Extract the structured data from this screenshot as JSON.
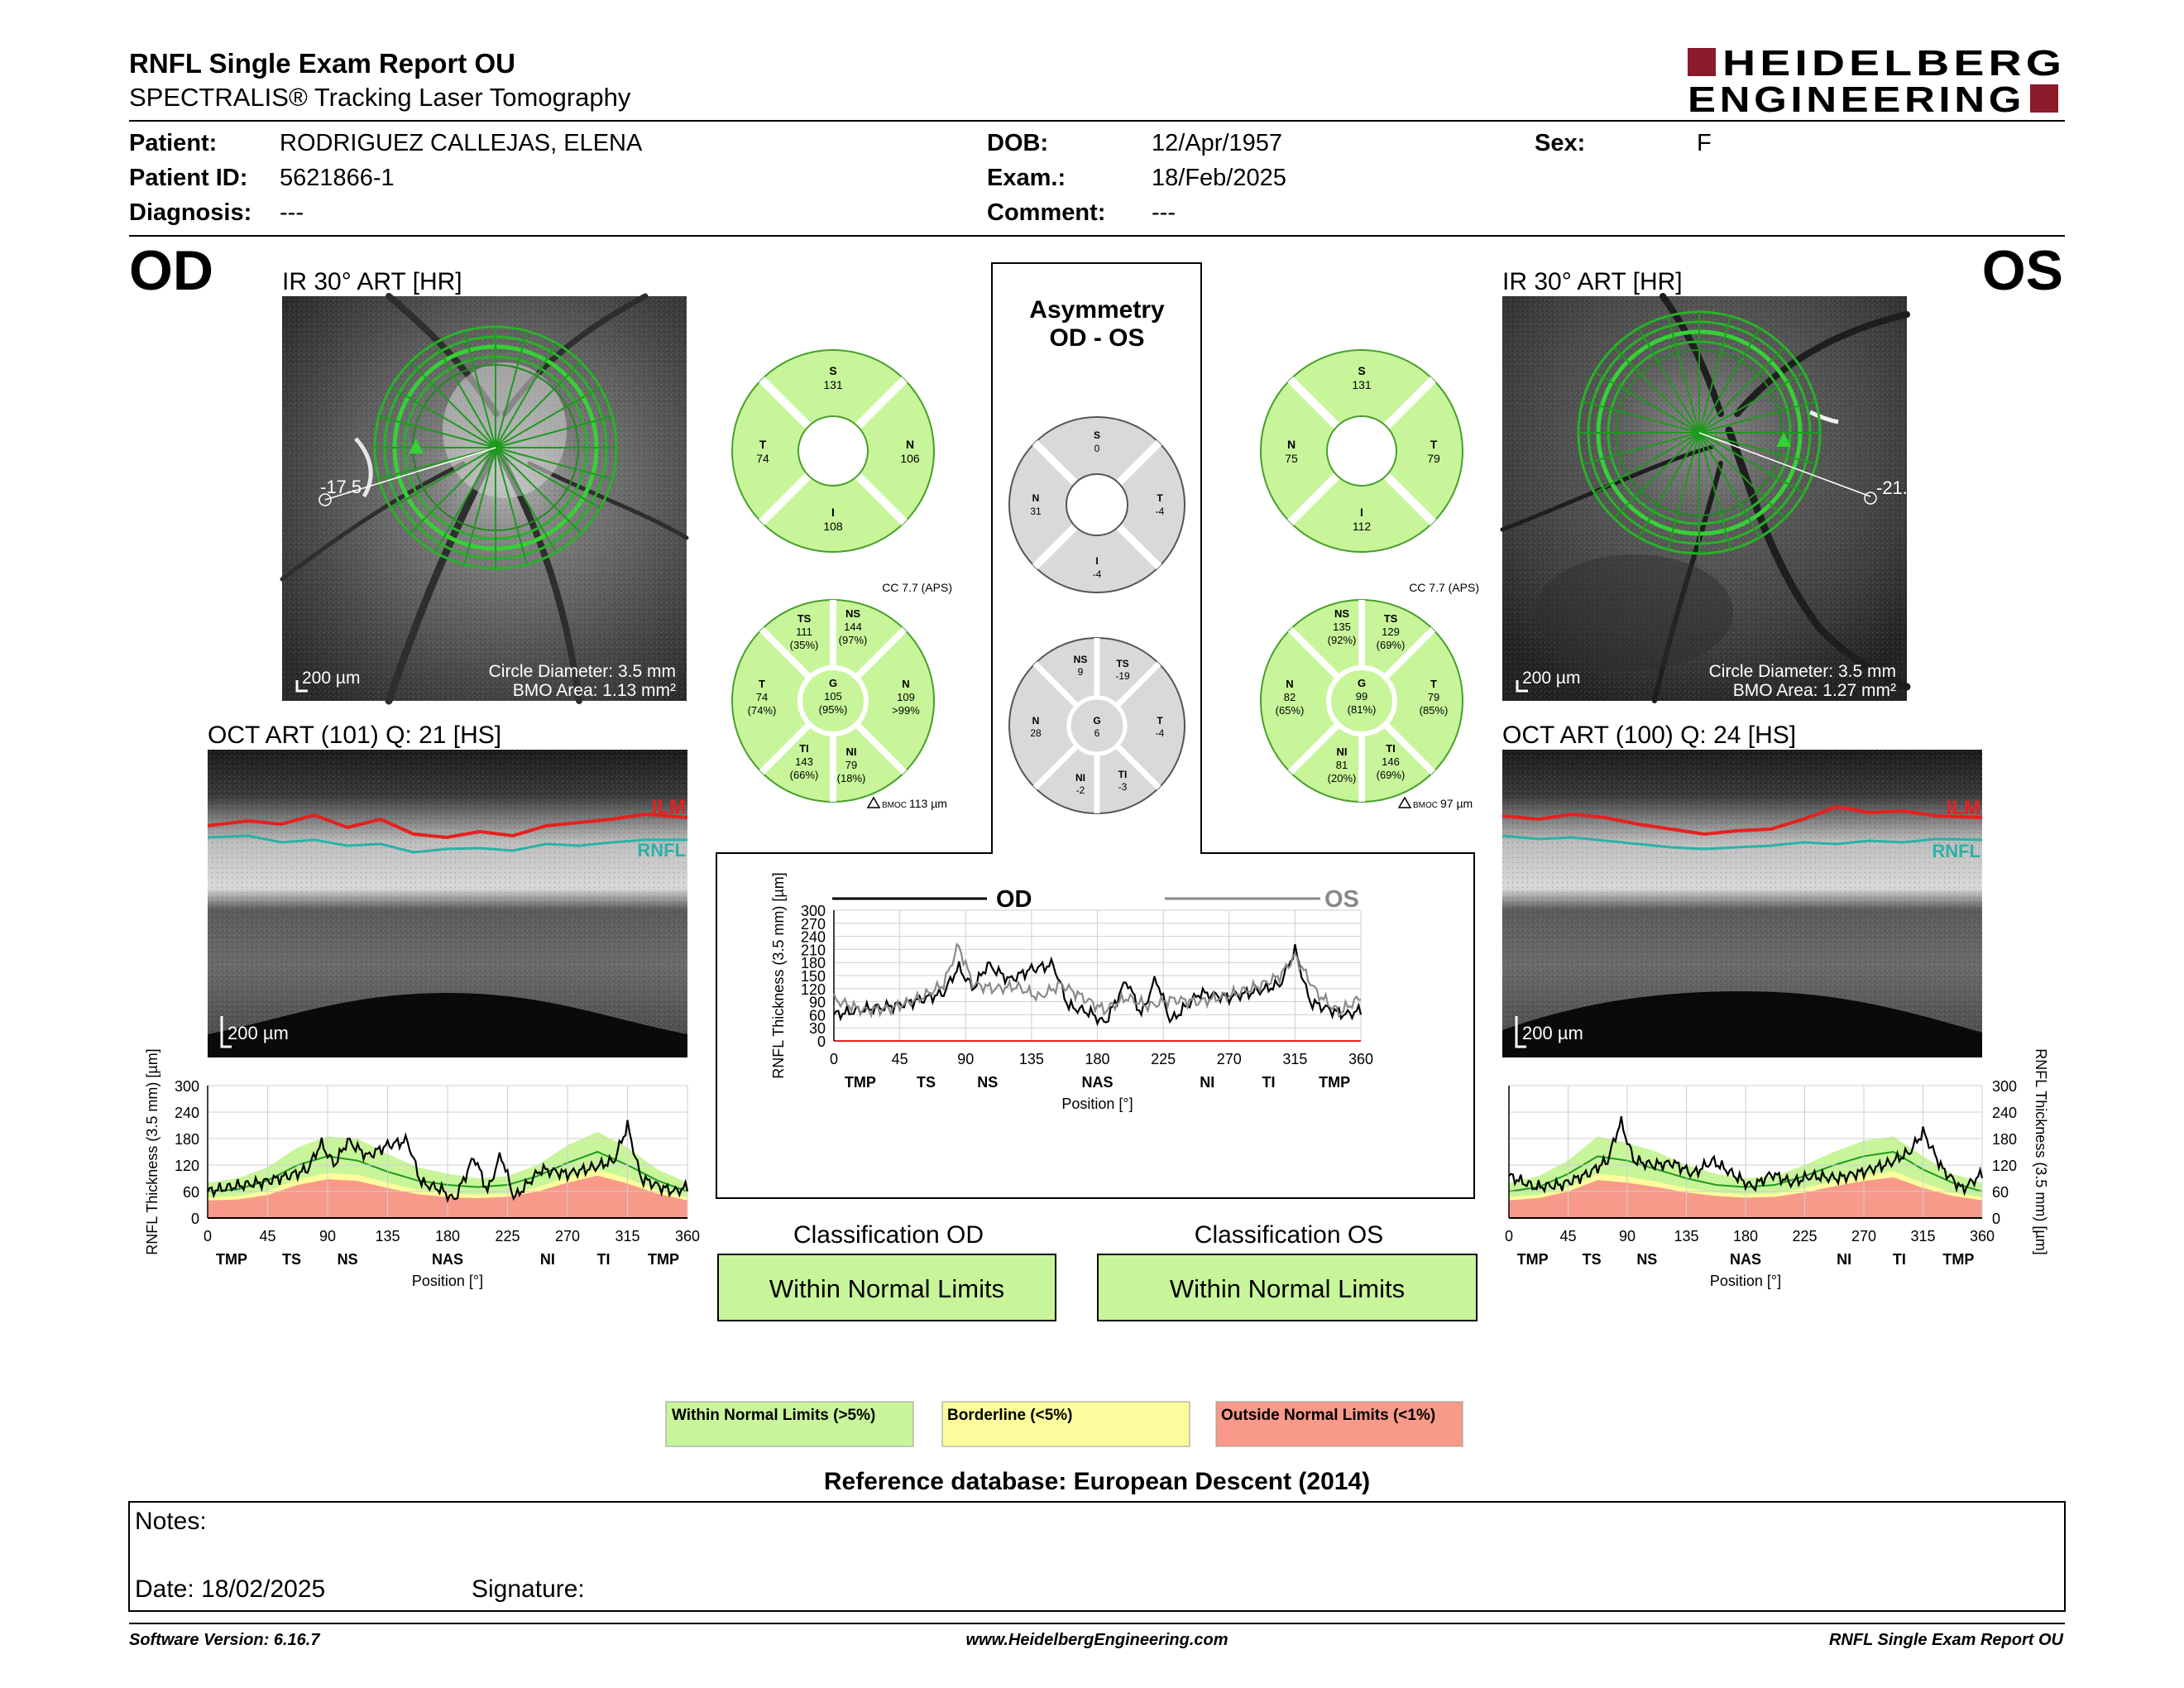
{
  "header": {
    "title": "RNFL Single Exam Report OU",
    "subtitle": "SPECTRALIS® Tracking Laser Tomography",
    "logo_line1": "HEIDELBERG",
    "logo_line2": "ENGINEERING",
    "logo_color": "#8b1a2b"
  },
  "patient": {
    "patient_label": "Patient:",
    "patient_value": "RODRIGUEZ CALLEJAS, ELENA",
    "id_label": "Patient ID:",
    "id_value": "5621866-1",
    "diagnosis_label": "Diagnosis:",
    "diagnosis_value": "---",
    "dob_label": "DOB:",
    "dob_value": "12/Apr/1957",
    "exam_label": "Exam.:",
    "exam_value": "18/Feb/2025",
    "comment_label": "Comment:",
    "comment_value": "---",
    "sex_label": "Sex:",
    "sex_value": "F"
  },
  "od": {
    "eye": "OD",
    "ir_title": "IR 30° ART [HR]",
    "angle": "-17.5",
    "scale": "200 µm",
    "circle_diameter": "Circle Diameter: 3.5 mm",
    "bmo_area": "BMO Area: 1.13 mm²",
    "oct_title": "OCT ART (101) Q: 21 [HS]",
    "oct_scale": "200 µm",
    "ilm": "ILM",
    "rnfl": "RNFL",
    "quad": {
      "S": "131",
      "N": "106",
      "I": "108",
      "T": "74"
    },
    "sector_header": "CC 7.7 (APS)",
    "bmoc": "113 µm",
    "sectors": {
      "TS": {
        "v": "111",
        "p": "(35%)"
      },
      "NS": {
        "v": "144",
        "p": "(97%)"
      },
      "N": {
        "v": "109",
        "p": ">99%"
      },
      "NI": {
        "v": "79",
        "p": "(18%)"
      },
      "TI": {
        "v": "143",
        "p": "(66%)"
      },
      "T": {
        "v": "74",
        "p": "(74%)"
      },
      "G": {
        "v": "105",
        "p": "(95%)"
      }
    },
    "classification_label": "Classification OD",
    "classification_value": "Within Normal Limits"
  },
  "os": {
    "eye": "OS",
    "ir_title": "IR 30° ART [HR]",
    "angle": "-21.",
    "scale": "200 µm",
    "circle_diameter": "Circle Diameter: 3.5 mm",
    "bmo_area": "BMO Area: 1.27 mm²",
    "oct_title": "OCT ART (100) Q: 24 [HS]",
    "oct_scale": "200 µm",
    "ilm": "ILM",
    "rnfl": "RNFL",
    "quad": {
      "S": "131",
      "N": "75",
      "I": "112",
      "T": "79"
    },
    "sector_header": "CC 7.7 (APS)",
    "bmoc": "97 µm",
    "sectors": {
      "NS": {
        "v": "135",
        "p": "(92%)"
      },
      "TS": {
        "v": "129",
        "p": "(69%)"
      },
      "T": {
        "v": "79",
        "p": "(85%)"
      },
      "TI": {
        "v": "146",
        "p": "(69%)"
      },
      "NI": {
        "v": "81",
        "p": "(20%)"
      },
      "N": {
        "v": "82",
        "p": "(65%)"
      },
      "G": {
        "v": "99",
        "p": "(81%)"
      }
    },
    "classification_label": "Classification OS",
    "classification_value": "Within Normal Limits"
  },
  "asymmetry": {
    "title1": "Asymmetry",
    "title2": "OD - OS",
    "quad": {
      "S": "0",
      "N": "31",
      "T": "-4",
      "I": "-4"
    },
    "sectors": {
      "NS": "9",
      "TS": "-19",
      "N": "28",
      "G": "6",
      "T": "-4",
      "NI": "-2",
      "TI": "-3"
    }
  },
  "legend": {
    "wnl": "Within Normal Limits (>5%)",
    "borderline": "Borderline (<5%)",
    "onl": "Outside Normal Limits (<1%)",
    "reference": "Reference database: European Descent (2014)"
  },
  "notes": {
    "notes_label": "Notes:",
    "date": "Date: 18/02/2025",
    "signature": "Signature:"
  },
  "footer": {
    "software": "Software Version: 6.16.7",
    "url": "www.HeidelbergEngineering.com",
    "report": "RNFL Single Exam Report OU"
  },
  "colors": {
    "wnl": "#c8f59a",
    "wnl_border": "#46a02a",
    "borderline": "#fdfc9c",
    "onl": "#f89a8a",
    "asym_gray": "#d9d9d9",
    "ilm": "#e62020",
    "rnfl": "#2ab2a8"
  },
  "chart_data": [
    {
      "id": "od-profile",
      "type": "area",
      "ylabel": "RNFL Thickness (3.5 mm) [µm]",
      "xlabel": "Position [°]",
      "x_ticks": [
        0,
        45,
        90,
        135,
        180,
        225,
        270,
        315,
        360
      ],
      "y_ticks": [
        0,
        60,
        120,
        180,
        240,
        300
      ],
      "sector_labels": [
        "TMP",
        "TS",
        "NS",
        "NAS",
        "NI",
        "TI",
        "TMP"
      ],
      "sector_positions": [
        18,
        63,
        105,
        180,
        255,
        297,
        342
      ],
      "xlim": [
        0,
        360
      ],
      "ylim": [
        0,
        300
      ],
      "normal_upper": [
        80,
        90,
        115,
        160,
        185,
        180,
        145,
        115,
        100,
        90,
        95,
        120,
        165,
        195,
        160,
        110,
        80
      ],
      "normal_mean": [
        60,
        65,
        85,
        120,
        140,
        130,
        105,
        85,
        75,
        70,
        75,
        95,
        125,
        150,
        120,
        85,
        60
      ],
      "borderline_upper": [
        47,
        50,
        62,
        88,
        102,
        98,
        80,
        64,
        56,
        53,
        56,
        70,
        92,
        110,
        90,
        64,
        47
      ],
      "outside_upper": [
        40,
        42,
        52,
        75,
        88,
        84,
        68,
        54,
        47,
        45,
        48,
        60,
        80,
        96,
        78,
        55,
        40
      ],
      "series": [
        {
          "name": "OD",
          "x": [
            0,
            20,
            40,
            60,
            75,
            85,
            95,
            105,
            120,
            135,
            150,
            160,
            175,
            185,
            200,
            210,
            220,
            230,
            250,
            270,
            290,
            305,
            315,
            325,
            340,
            350,
            360
          ],
          "values": [
            60,
            72,
            80,
            95,
            110,
            170,
            120,
            175,
            140,
            165,
            175,
            80,
            65,
            40,
            140,
            60,
            145,
            45,
            110,
            100,
            115,
            130,
            210,
            90,
            70,
            60,
            70
          ]
        }
      ]
    },
    {
      "id": "asym-profile",
      "type": "line",
      "ylabel": "RNFL Thickness (3.5 mm) [µm]",
      "xlabel": "Position [°]",
      "x_ticks": [
        0,
        45,
        90,
        135,
        180,
        225,
        270,
        315,
        360
      ],
      "y_ticks": [
        0,
        30,
        60,
        90,
        120,
        150,
        180,
        210,
        240,
        270,
        300
      ],
      "sector_labels": [
        "TMP",
        "TS",
        "NS",
        "NAS",
        "NI",
        "TI",
        "TMP"
      ],
      "sector_positions": [
        18,
        63,
        105,
        180,
        255,
        297,
        342
      ],
      "xlim": [
        0,
        360
      ],
      "ylim": [
        0,
        300
      ],
      "series": [
        {
          "name": "OD",
          "x": [
            0,
            20,
            40,
            60,
            75,
            85,
            95,
            105,
            120,
            135,
            150,
            160,
            175,
            185,
            200,
            210,
            220,
            230,
            250,
            270,
            290,
            305,
            315,
            325,
            340,
            350,
            360
          ],
          "values": [
            60,
            72,
            80,
            95,
            110,
            170,
            120,
            175,
            140,
            165,
            175,
            80,
            65,
            40,
            140,
            60,
            145,
            45,
            110,
            100,
            115,
            130,
            210,
            90,
            70,
            60,
            70
          ]
        },
        {
          "name": "OS",
          "x": [
            0,
            20,
            40,
            60,
            75,
            85,
            95,
            110,
            125,
            140,
            155,
            170,
            185,
            200,
            215,
            230,
            250,
            270,
            290,
            305,
            315,
            330,
            345,
            360
          ],
          "values": [
            95,
            70,
            75,
            100,
            130,
            220,
            130,
            120,
            125,
            100,
            130,
            100,
            70,
            100,
            80,
            95,
            90,
            105,
            125,
            150,
            195,
            110,
            65,
            100
          ]
        }
      ]
    },
    {
      "id": "os-profile",
      "type": "area",
      "ylabel": "RNFL Thickness (3.5 mm) [µm]",
      "xlabel": "Position [°]",
      "x_ticks": [
        0,
        45,
        90,
        135,
        180,
        225,
        270,
        315,
        360
      ],
      "y_ticks": [
        0,
        60,
        120,
        180,
        240,
        300
      ],
      "sector_labels": [
        "TMP",
        "TS",
        "NS",
        "NAS",
        "NI",
        "TI",
        "TMP"
      ],
      "sector_positions": [
        18,
        63,
        105,
        180,
        255,
        297,
        342
      ],
      "xlim": [
        0,
        360
      ],
      "ylim": [
        0,
        300
      ],
      "normal_upper": [
        80,
        95,
        130,
        185,
        170,
        150,
        120,
        100,
        90,
        95,
        120,
        150,
        175,
        185,
        140,
        100,
        80
      ],
      "normal_mean": [
        60,
        70,
        100,
        140,
        130,
        110,
        90,
        75,
        70,
        75,
        95,
        120,
        140,
        150,
        110,
        80,
        60
      ],
      "borderline_upper": [
        47,
        53,
        70,
        100,
        94,
        82,
        68,
        58,
        54,
        56,
        68,
        84,
        98,
        106,
        80,
        58,
        47
      ],
      "outside_upper": [
        40,
        45,
        60,
        86,
        80,
        70,
        58,
        50,
        46,
        48,
        58,
        72,
        84,
        92,
        68,
        50,
        40
      ],
      "series": [
        {
          "name": "OS",
          "x": [
            0,
            20,
            40,
            60,
            75,
            85,
            95,
            110,
            125,
            140,
            155,
            170,
            185,
            200,
            215,
            230,
            250,
            270,
            290,
            305,
            315,
            330,
            345,
            360
          ],
          "values": [
            95,
            70,
            75,
            100,
            130,
            220,
            130,
            120,
            125,
            100,
            130,
            100,
            70,
            100,
            80,
            95,
            90,
            105,
            125,
            150,
            195,
            110,
            65,
            100
          ]
        }
      ]
    }
  ]
}
